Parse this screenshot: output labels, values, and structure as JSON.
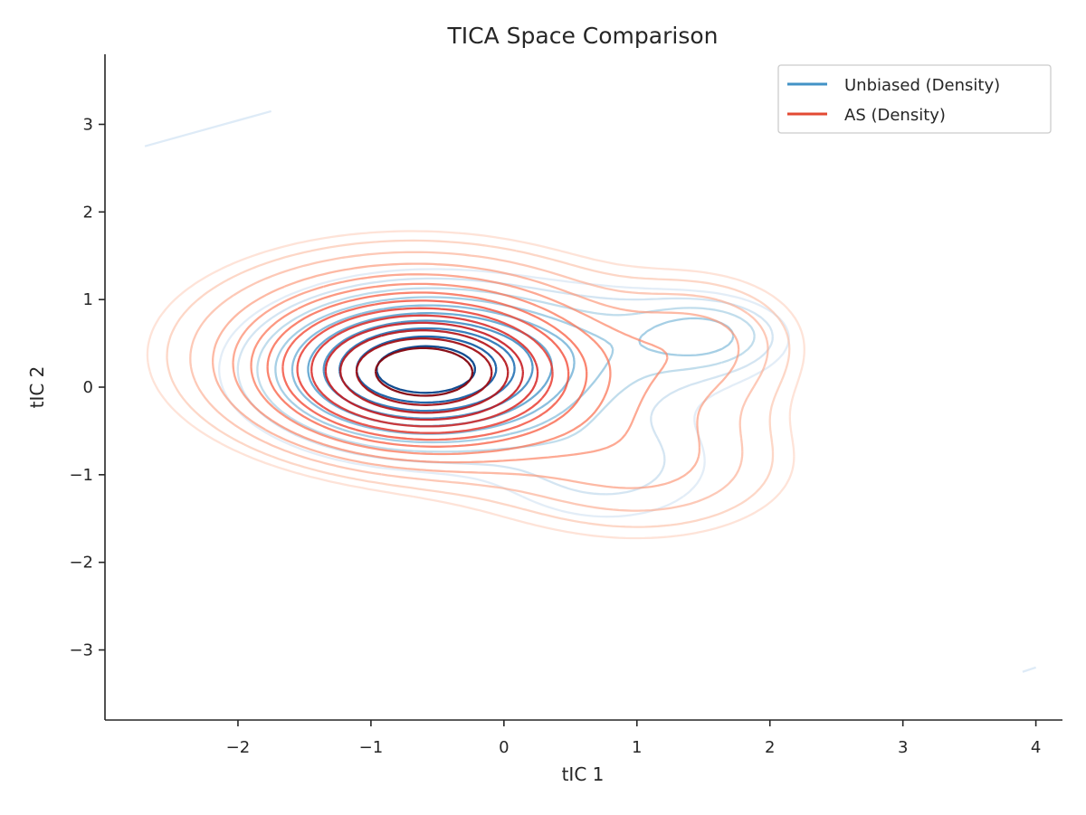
{
  "chart_data": {
    "type": "contour",
    "title": "TICA Space Comparison",
    "xlabel": "tIC 1",
    "ylabel": "tIC 2",
    "xlim": [
      -3.0,
      4.2
    ],
    "ylim": [
      -3.8,
      3.8
    ],
    "xticks": [
      -2,
      -1,
      0,
      1,
      2,
      3,
      4
    ],
    "yticks": [
      -3,
      -2,
      -1,
      0,
      1,
      2,
      3
    ],
    "grid": false,
    "legend_position": "top-right",
    "series": [
      {
        "name": "Unbiased (Density)",
        "colormap": "Blues",
        "legend_color": "#4292c6",
        "levels": 10,
        "components": [
          {
            "weight": 1.0,
            "mean": [
              -0.6,
              0.2
            ],
            "sd": [
              0.55,
              0.4
            ],
            "rho": 0.0
          },
          {
            "weight": 0.15,
            "mean": [
              1.5,
              0.6
            ],
            "sd": [
              0.3,
              0.22
            ],
            "rho": 0.0
          },
          {
            "weight": 0.1,
            "mean": [
              1.0,
              0.5
            ],
            "sd": [
              0.7,
              0.4
            ],
            "rho": 0.0
          },
          {
            "weight": 0.08,
            "mean": [
              0.8,
              -0.9
            ],
            "sd": [
              0.6,
              0.5
            ],
            "rho": 0.0
          },
          {
            "weight": 0.12,
            "mean": [
              -0.5,
              0.2
            ],
            "sd": [
              0.9,
              0.65
            ],
            "rho": 0.0
          }
        ],
        "stray_segments": [
          {
            "x": [
              -2.7,
              -1.75
            ],
            "y": [
              2.75,
              3.15
            ]
          },
          {
            "x": [
              3.9,
              4.0
            ],
            "y": [
              -3.25,
              -3.2
            ]
          }
        ]
      },
      {
        "name": "AS (Density)",
        "colormap": "Reds",
        "legend_color": "#e34a33",
        "levels": 14,
        "components": [
          {
            "weight": 1.0,
            "mean": [
              -0.6,
              0.15
            ],
            "sd": [
              0.6,
              0.45
            ],
            "rho": 0.0
          },
          {
            "weight": 0.3,
            "mean": [
              -0.7,
              0.4
            ],
            "sd": [
              1.0,
              0.7
            ],
            "rho": 0.0
          },
          {
            "weight": 0.12,
            "mean": [
              1.5,
              0.5
            ],
            "sd": [
              0.5,
              0.5
            ],
            "rho": 0.0
          },
          {
            "weight": 0.1,
            "mean": [
              1.2,
              -0.9
            ],
            "sd": [
              0.7,
              0.55
            ],
            "rho": 0.0
          },
          {
            "weight": 0.06,
            "mean": [
              0.4,
              -0.6
            ],
            "sd": [
              0.8,
              0.7
            ],
            "rho": 0.0
          }
        ]
      }
    ]
  },
  "colors": {
    "axis": "#262626",
    "blues": [
      "#deebf7",
      "#c6dbef",
      "#9ecae1",
      "#6baed6",
      "#4292c6",
      "#2171b5",
      "#08519c",
      "#08306b"
    ],
    "reds": [
      "#fee0d2",
      "#fcbba1",
      "#fc9272",
      "#fb6a4a",
      "#ef3b2c",
      "#cb181d",
      "#a50f15",
      "#67000d"
    ],
    "legend_frame": "#cccccc"
  }
}
